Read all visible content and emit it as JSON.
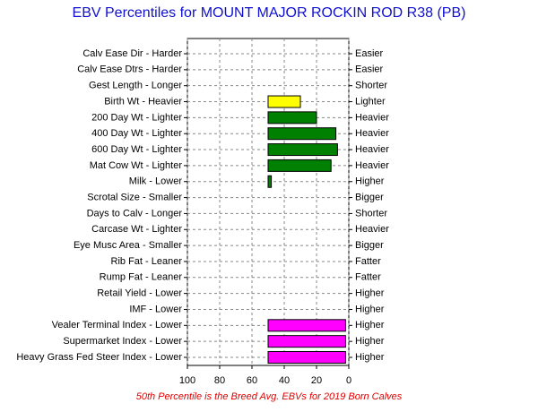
{
  "chart_data": {
    "type": "bar",
    "orientation": "horizontal",
    "title": "EBV Percentiles for MOUNT MAJOR ROCKIN ROD R38 (PB)",
    "footnote": "50th Percentile is the Breed Avg. EBVs for 2019 Born Calves",
    "categories": [
      "Calv Ease Dir - Harder",
      "Calv Ease Dtrs - Harder",
      "Gest Length - Longer",
      "Birth Wt - Heavier",
      "200 Day Wt - Lighter",
      "400 Day Wt - Lighter",
      "600 Day Wt - Lighter",
      "Mat Cow Wt - Lighter",
      "Milk - Lower",
      "Scrotal Size - Smaller",
      "Days to Calv - Longer",
      "Carcase Wt - Lighter",
      "Eye Musc Area - Smaller",
      "Rib Fat - Leaner",
      "Rump Fat - Leaner",
      "Retail Yield - Lower",
      "IMF - Lower",
      "Vealer Terminal Index - Lower",
      "Supermarket Index - Lower",
      "Heavy Grass Fed Steer Index - Lower"
    ],
    "right_labels": [
      "Easier",
      "Easier",
      "Shorter",
      "Lighter",
      "Heavier",
      "Heavier",
      "Heavier",
      "Heavier",
      "Higher",
      "Bigger",
      "Shorter",
      "Heavier",
      "Bigger",
      "Fatter",
      "Fatter",
      "Higher",
      "Higher",
      "Higher",
      "Higher",
      "Higher"
    ],
    "values": [
      null,
      null,
      null,
      30,
      20,
      8,
      7,
      11,
      48,
      null,
      null,
      null,
      null,
      null,
      null,
      null,
      null,
      2,
      2,
      2
    ],
    "colors": [
      null,
      null,
      null,
      "#ffff00",
      "#008000",
      "#008000",
      "#008000",
      "#008000",
      "#008000",
      null,
      null,
      null,
      null,
      null,
      null,
      null,
      null,
      "#ff00ff",
      "#ff00ff",
      "#ff00ff"
    ],
    "baseline": 50,
    "xlim": [
      100,
      0
    ],
    "xticks": [
      100,
      80,
      60,
      40,
      20,
      0
    ],
    "grid": true
  }
}
